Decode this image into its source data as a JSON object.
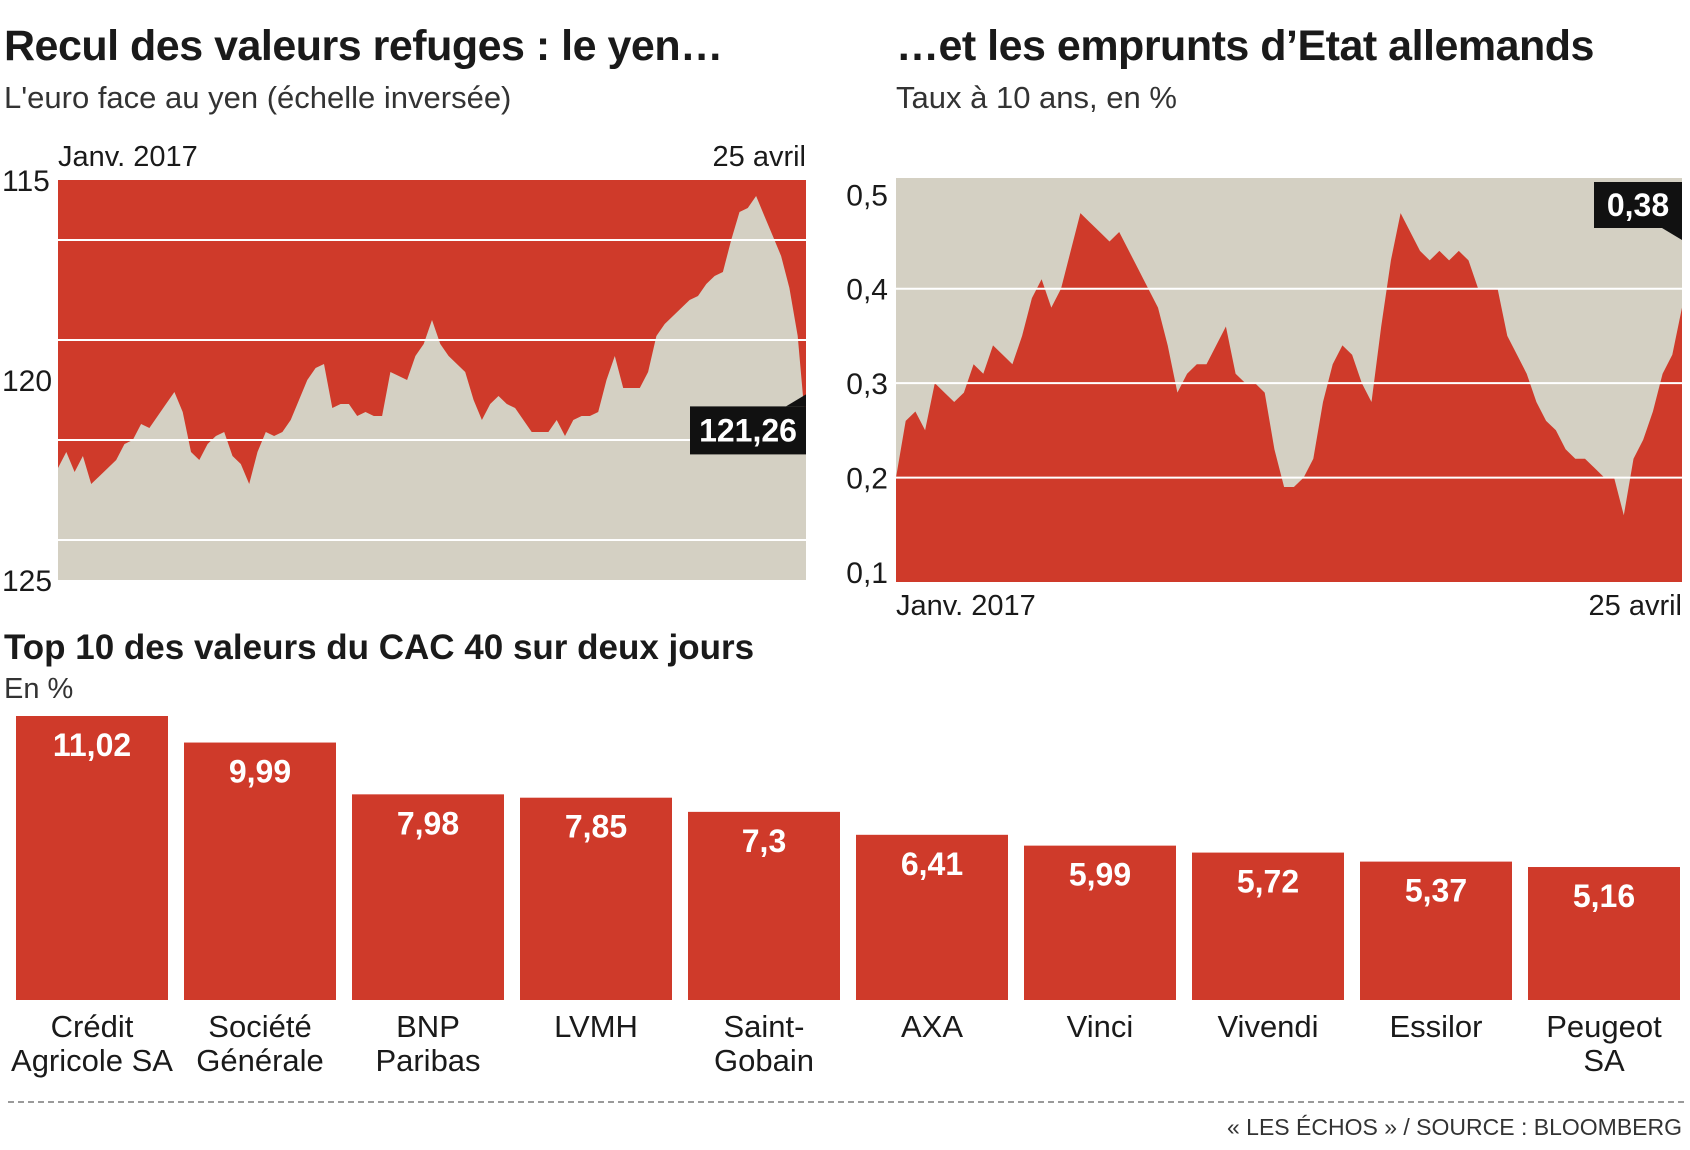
{
  "colors": {
    "red": "#cf3a2a",
    "gray": "#d4d0c3",
    "grid": "#ffffff",
    "badge": "#111111",
    "text": "#1a1a1a"
  },
  "left": {
    "title": "Recul des valeurs refuges : le yen…",
    "subtitle": "L'euro face au yen (échelle inversée)"
  },
  "right": {
    "title": "…et les emprunts d’Etat allemands",
    "subtitle": "Taux à 10 ans, en %"
  },
  "bottom": {
    "title": "Top 10 des valeurs du CAC 40 sur deux jours",
    "subtitle": "En %"
  },
  "source": "« LES ÉCHOS » / SOURCE : BLOOMBERG",
  "chart_data": [
    {
      "type": "area",
      "x_start_label": "Janv. 2017",
      "x_end_label": "25 avril",
      "y_inverted": true,
      "ylim": [
        115,
        125
      ],
      "yticks": [
        "115",
        "120",
        "125"
      ],
      "last_value_label": "121,26",
      "y": [
        122.2,
        121.8,
        122.3,
        121.9,
        122.6,
        122.4,
        122.2,
        122.0,
        121.6,
        121.5,
        121.1,
        121.2,
        120.9,
        120.6,
        120.3,
        120.8,
        121.8,
        122.0,
        121.6,
        121.4,
        121.3,
        121.9,
        122.1,
        122.6,
        121.8,
        121.3,
        121.4,
        121.3,
        121.0,
        120.5,
        120.0,
        119.7,
        119.6,
        120.7,
        120.6,
        120.6,
        120.9,
        120.8,
        120.9,
        120.9,
        119.8,
        119.9,
        120.0,
        119.4,
        119.1,
        118.5,
        119.1,
        119.4,
        119.6,
        119.8,
        120.5,
        121.0,
        120.6,
        120.4,
        120.6,
        120.7,
        121.0,
        121.3,
        121.3,
        121.3,
        121.0,
        121.4,
        121.0,
        120.9,
        120.9,
        120.8,
        120.0,
        119.4,
        120.2,
        120.2,
        120.2,
        119.8,
        118.9,
        118.6,
        118.4,
        118.2,
        118.0,
        117.9,
        117.6,
        117.4,
        117.3,
        116.5,
        115.8,
        115.7,
        115.4,
        115.9,
        116.4,
        116.9,
        117.7,
        118.9,
        121.26
      ]
    },
    {
      "type": "area",
      "x_start_label": "Janv. 2017",
      "x_end_label": "25 avril",
      "ylim": [
        0.1,
        0.5
      ],
      "yticks": [
        "0,5",
        "0,4",
        "0,3",
        "0,2",
        "0,1"
      ],
      "last_value_label": "0,38",
      "y": [
        0.2,
        0.26,
        0.27,
        0.25,
        0.3,
        0.29,
        0.28,
        0.29,
        0.32,
        0.31,
        0.34,
        0.33,
        0.32,
        0.35,
        0.39,
        0.41,
        0.38,
        0.4,
        0.44,
        0.48,
        0.47,
        0.46,
        0.45,
        0.46,
        0.44,
        0.42,
        0.4,
        0.38,
        0.34,
        0.29,
        0.31,
        0.32,
        0.32,
        0.34,
        0.36,
        0.31,
        0.3,
        0.3,
        0.29,
        0.23,
        0.19,
        0.19,
        0.2,
        0.22,
        0.28,
        0.32,
        0.34,
        0.33,
        0.3,
        0.28,
        0.36,
        0.43,
        0.48,
        0.46,
        0.44,
        0.43,
        0.44,
        0.43,
        0.44,
        0.43,
        0.4,
        0.4,
        0.4,
        0.35,
        0.33,
        0.31,
        0.28,
        0.26,
        0.25,
        0.23,
        0.22,
        0.22,
        0.21,
        0.2,
        0.2,
        0.16,
        0.22,
        0.24,
        0.27,
        0.31,
        0.33,
        0.38
      ]
    },
    {
      "type": "bar",
      "categories": [
        [
          "Crédit",
          "Agricole SA"
        ],
        [
          "Société",
          "Générale"
        ],
        [
          "BNP",
          "Paribas"
        ],
        [
          "LVMH"
        ],
        [
          "Saint-",
          "Gobain"
        ],
        [
          "AXA"
        ],
        [
          "Vinci"
        ],
        [
          "Vivendi"
        ],
        [
          "Essilor"
        ],
        [
          "Peugeot",
          "SA"
        ]
      ],
      "values": [
        11.02,
        9.99,
        7.98,
        7.85,
        7.3,
        6.41,
        5.99,
        5.72,
        5.37,
        5.16
      ],
      "value_labels": [
        "11,02",
        "9,99",
        "7,98",
        "7,85",
        "7,3",
        "6,41",
        "5,99",
        "5,72",
        "5,37",
        "5,16"
      ]
    }
  ]
}
